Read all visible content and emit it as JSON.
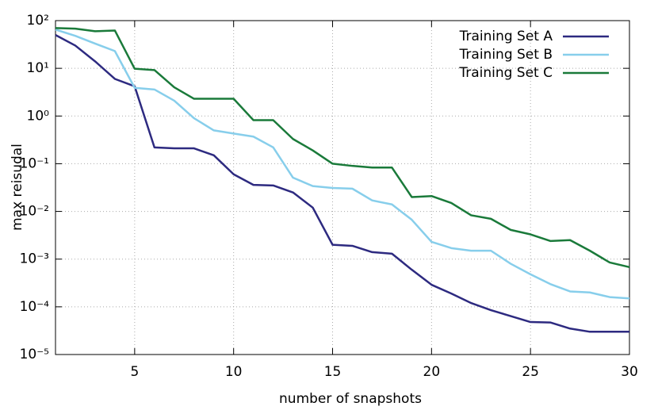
{
  "chart_data": {
    "type": "line",
    "x_label": "number of snapshots",
    "y_label": "max reisudal",
    "x": [
      1,
      2,
      3,
      4,
      5,
      6,
      7,
      8,
      9,
      10,
      11,
      12,
      13,
      14,
      15,
      16,
      17,
      18,
      19,
      20,
      21,
      22,
      23,
      24,
      25,
      26,
      27,
      28,
      29,
      30
    ],
    "series": [
      {
        "name": "Training Set A",
        "color": "#2d2a80",
        "values": [
          50,
          30,
          14,
          6,
          4.2,
          0.22,
          0.21,
          0.21,
          0.15,
          0.06,
          0.036,
          0.035,
          0.025,
          0.012,
          0.002,
          0.0019,
          0.0014,
          0.0013,
          0.0006,
          0.00029,
          0.00019,
          0.00012,
          8.5e-05,
          6.4e-05,
          4.8e-05,
          4.7e-05,
          3.5e-05,
          3e-05,
          3e-05,
          3e-05
        ]
      },
      {
        "name": "Training Set B",
        "color": "#87ceeb",
        "values": [
          65,
          48,
          33,
          23,
          3.9,
          3.6,
          2.1,
          0.9,
          0.5,
          0.43,
          0.37,
          0.22,
          0.051,
          0.034,
          0.031,
          0.03,
          0.017,
          0.014,
          0.0067,
          0.0023,
          0.0017,
          0.0015,
          0.0015,
          0.0008,
          0.00048,
          0.0003,
          0.00021,
          0.0002,
          0.00016,
          0.00015
        ]
      },
      {
        "name": "Training Set C",
        "color": "#1a7a3a",
        "values": [
          70,
          68,
          60,
          62,
          9.8,
          9.2,
          4,
          2.3,
          2.3,
          2.3,
          0.82,
          0.82,
          0.33,
          0.19,
          0.1,
          0.09,
          0.083,
          0.083,
          0.02,
          0.021,
          0.015,
          0.0083,
          0.007,
          0.0041,
          0.0033,
          0.0024,
          0.0025,
          0.0015,
          0.00085,
          0.00068
        ]
      }
    ],
    "xlim": [
      1,
      30
    ],
    "xticks": [
      5,
      10,
      15,
      20,
      25,
      30
    ],
    "ylim": [
      1e-05,
      100
    ],
    "yticks": [
      {
        "value": 100,
        "label": "10²"
      },
      {
        "value": 10,
        "label": "10¹"
      },
      {
        "value": 1,
        "label": "10⁰"
      },
      {
        "value": 0.1,
        "label": "10⁻¹"
      },
      {
        "value": 0.01,
        "label": "10⁻²"
      },
      {
        "value": 0.001,
        "label": "10⁻³"
      },
      {
        "value": 0.0001,
        "label": "10⁻⁴"
      },
      {
        "value": 1e-05,
        "label": "10⁻⁵"
      }
    ],
    "y_scale": "log",
    "grid": true,
    "legend": "top-right"
  }
}
